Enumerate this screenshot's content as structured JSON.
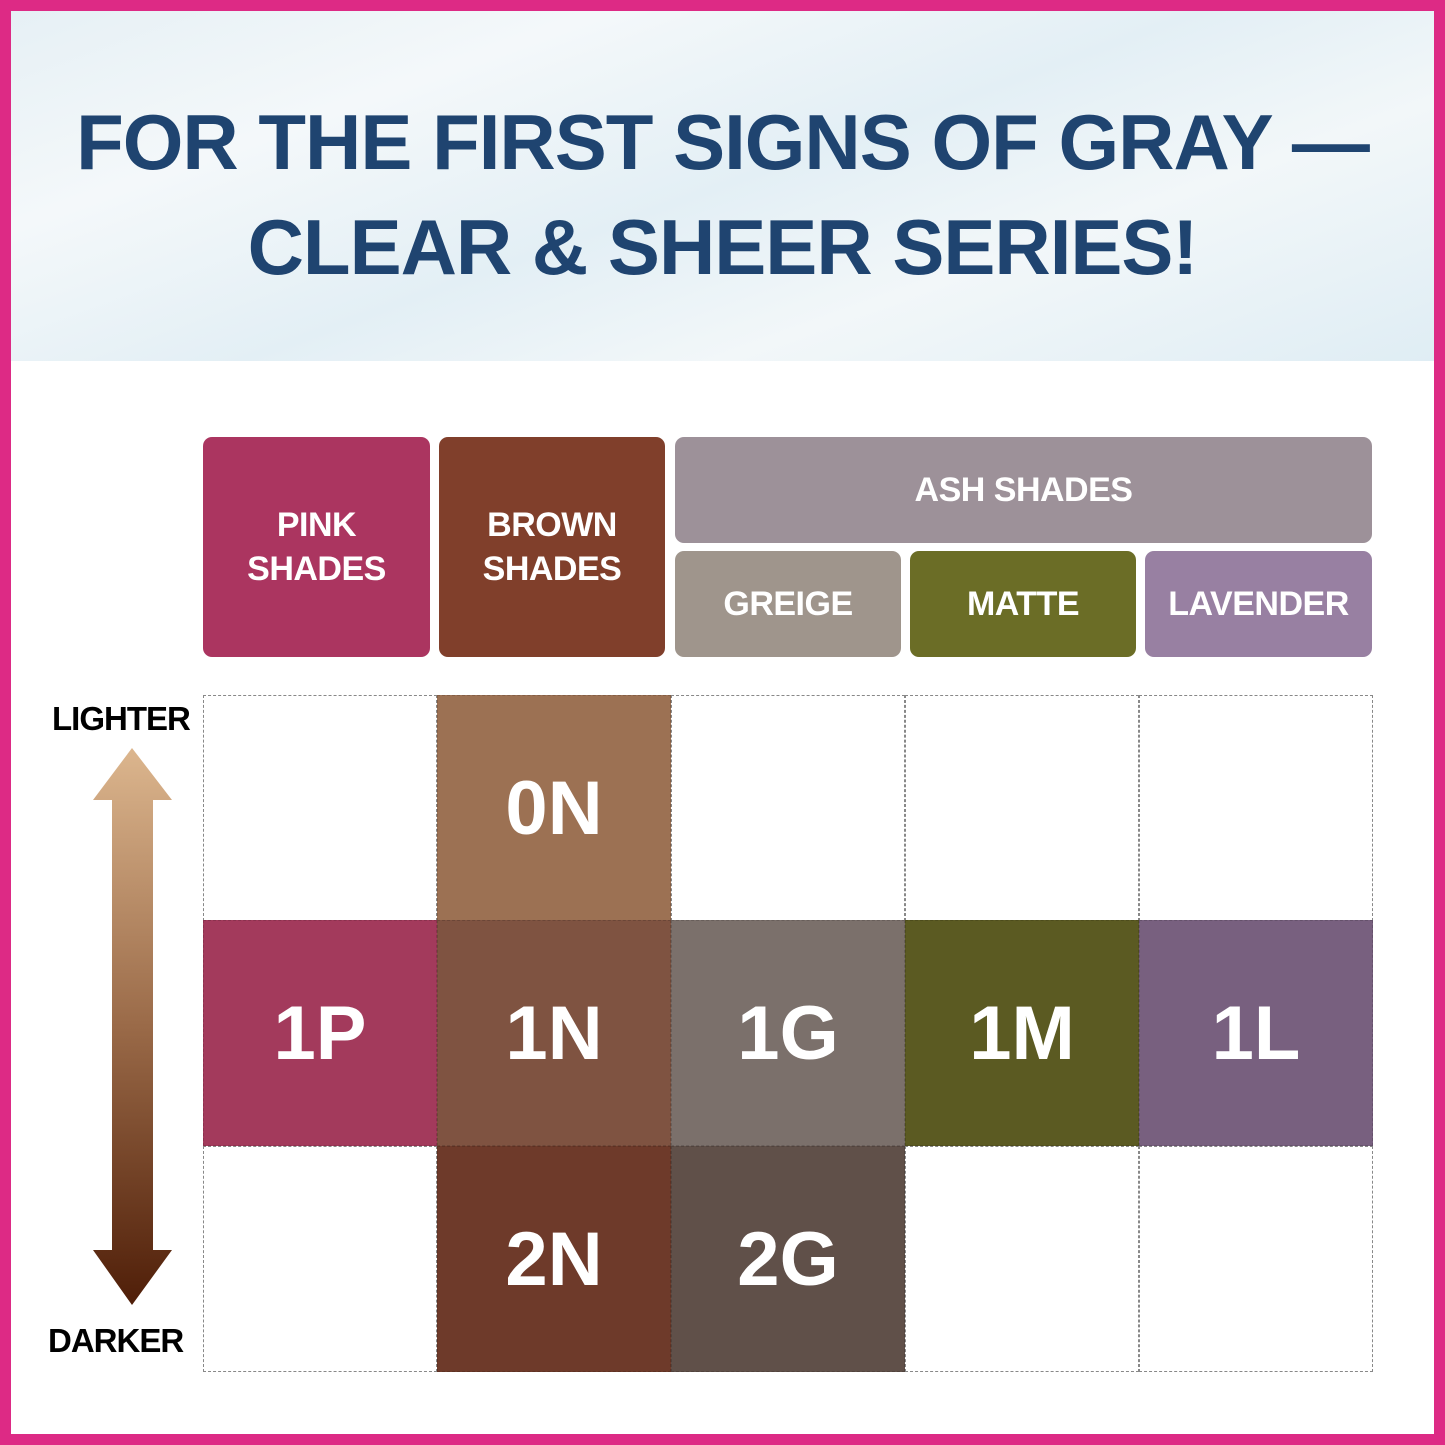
{
  "title": {
    "line1": "FOR THE FIRST SIGNS OF GRAY —",
    "line2": "CLEAR & SHEER SERIES!"
  },
  "colors": {
    "border": "#dd2a85",
    "title": "#1f4470"
  },
  "headers": {
    "pink": {
      "label": "PINK\nSHADES",
      "color": "#ab3560"
    },
    "brown": {
      "label": "BROWN\nSHADES",
      "color": "#803f2b"
    },
    "ash": {
      "label": "ASH SHADES",
      "color": "#9d9199"
    },
    "greige": {
      "label": "GREIGE",
      "color": "#9f958c"
    },
    "matte": {
      "label": "MATTE",
      "color": "#6b6d26"
    },
    "lavender": {
      "label": "LAVENDER",
      "color": "#9880a2"
    }
  },
  "scale": {
    "top": "LIGHTER",
    "bottom": "DARKER",
    "icon": "double-arrow-vertical"
  },
  "grid": [
    [
      null,
      {
        "code": "0N",
        "color": "#9c7153"
      },
      null,
      null,
      null
    ],
    [
      {
        "code": "1P",
        "color": "#a33a5c"
      },
      {
        "code": "1N",
        "color": "#7f5341"
      },
      {
        "code": "1G",
        "color": "#7b706b"
      },
      {
        "code": "1M",
        "color": "#5b5a22"
      },
      {
        "code": "1L",
        "color": "#78607f"
      }
    ],
    [
      null,
      {
        "code": "2N",
        "color": "#6e3a2a"
      },
      {
        "code": "2G",
        "color": "#605049"
      },
      null,
      null
    ]
  ]
}
